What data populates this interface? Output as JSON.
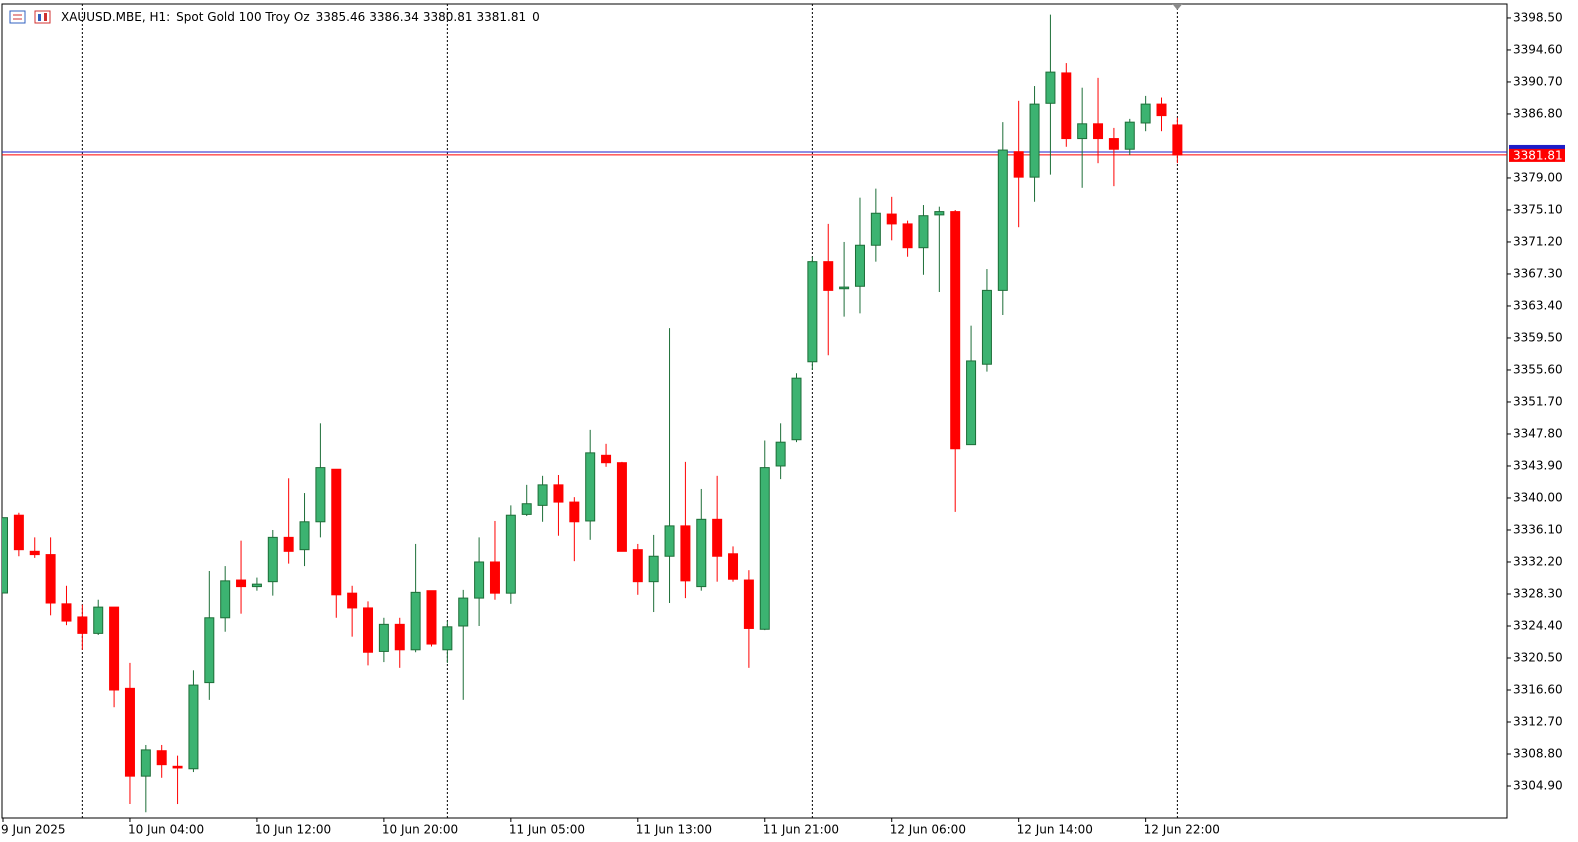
{
  "chart_data": {
    "type": "candlestick",
    "symbol": "XAUUSD.MBE, H1:",
    "description": "Spot Gold 100 Troy Oz",
    "spread": 0,
    "categories": [
      "9 Jun 2025",
      null,
      null,
      null,
      null,
      null,
      null,
      null,
      "10 Jun 04:00",
      null,
      null,
      null,
      null,
      null,
      null,
      null,
      "10 Jun 12:00",
      null,
      null,
      null,
      null,
      null,
      null,
      null,
      "10 Jun 20:00",
      null,
      null,
      null,
      null,
      null,
      null,
      null,
      "11 Jun 05:00",
      null,
      null,
      null,
      null,
      null,
      null,
      null,
      "11 Jun 13:00",
      null,
      null,
      null,
      null,
      null,
      null,
      null,
      "11 Jun 21:00",
      null,
      null,
      null,
      null,
      null,
      null,
      null,
      "12 Jun 06:00",
      null,
      null,
      null,
      null,
      null,
      null,
      null,
      "12 Jun 14:00",
      null,
      null,
      null,
      null,
      null,
      null,
      null,
      "12 Jun 22:00",
      null,
      null
    ],
    "open": [
      3328.42,
      3337.9,
      3333.5,
      3333.1,
      3327.1,
      3325.5,
      3323.5,
      3326.7,
      3316.8,
      3306.1,
      3309.2,
      3307.3,
      3307.0,
      3317.5,
      3325.4,
      3330.0,
      3329.2,
      3329.8,
      3335.2,
      3333.7,
      3337.1,
      3343.5,
      3328.4,
      3326.6,
      3321.3,
      3324.6,
      3321.5,
      3328.7,
      3321.5,
      3324.4,
      3327.8,
      3332.2,
      3328.4,
      3338.0,
      3339.1,
      3341.6,
      3339.5,
      3337.2,
      3345.2,
      3344.3,
      3333.7,
      3329.8,
      3332.9,
      3336.6,
      3329.2,
      3337.4,
      3333.2,
      3330.0,
      3324.0,
      3343.9,
      3347.1,
      3356.6,
      3368.8,
      3365.5,
      3365.8,
      3370.8,
      3374.6,
      3373.4,
      3370.5,
      3374.5,
      3374.9,
      3346.5,
      3356.3,
      3365.3,
      3382.2,
      3379.1,
      3388.1,
      3391.8,
      3383.8,
      3385.6,
      3383.8,
      3382.5,
      3385.7,
      3388.0,
      3385.46
    ],
    "high": [
      3337.6,
      3338.2,
      3335.2,
      3335.2,
      3329.3,
      3327.0,
      3327.6,
      3326.7,
      3319.9,
      3309.9,
      3309.9,
      3308.6,
      3319.0,
      3331.1,
      3331.7,
      3334.8,
      3330.3,
      3336.1,
      3342.4,
      3340.6,
      3349.1,
      3343.5,
      3329.3,
      3327.4,
      3325.4,
      3325.4,
      3334.4,
      3328.7,
      3325.0,
      3328.8,
      3335.2,
      3337.2,
      3339.1,
      3341.6,
      3342.7,
      3342.8,
      3340.1,
      3348.3,
      3346.6,
      3344.4,
      3334.4,
      3335.5,
      3360.7,
      3344.4,
      3341.1,
      3342.7,
      3334.1,
      3331.2,
      3347.0,
      3349.1,
      3355.2,
      3369.4,
      3373.4,
      3371.2,
      3376.6,
      3377.7,
      3376.7,
      3373.8,
      3375.7,
      3375.5,
      3375.1,
      3361.0,
      3367.9,
      3385.8,
      3388.4,
      3390.2,
      3398.9,
      3393.0,
      3390.0,
      3391.2,
      3385.1,
      3386.2,
      3389.0,
      3388.8,
      3386.34
    ],
    "low": [
      3328.4,
      3332.9,
      3332.7,
      3325.7,
      3324.5,
      3321.5,
      3323.3,
      3314.5,
      3302.7,
      3301.7,
      3305.9,
      3302.7,
      3306.6,
      3315.4,
      3323.7,
      3325.9,
      3328.7,
      3328.1,
      3332.0,
      3331.7,
      3335.2,
      3325.4,
      3323.1,
      3319.6,
      3320.0,
      3319.3,
      3321.2,
      3321.9,
      3319.9,
      3315.4,
      3324.4,
      3327.6,
      3327.1,
      3337.8,
      3337.1,
      3335.4,
      3332.3,
      3334.9,
      3343.8,
      3333.5,
      3328.2,
      3326.1,
      3327.2,
      3327.8,
      3328.7,
      3329.8,
      3329.8,
      3319.3,
      3323.9,
      3342.3,
      3346.8,
      3355.6,
      3357.4,
      3362.1,
      3362.5,
      3368.8,
      3371.4,
      3369.4,
      3367.2,
      3365.1,
      3338.3,
      3346.5,
      3355.4,
      3362.3,
      3373.0,
      3376.1,
      3379.4,
      3382.8,
      3377.8,
      3380.8,
      3378.0,
      3381.8,
      3384.7,
      3384.7,
      3380.81
    ],
    "close": [
      3337.6,
      3333.7,
      3333.1,
      3327.2,
      3325.0,
      3323.5,
      3326.7,
      3316.6,
      3306.1,
      3309.3,
      3307.5,
      3307.1,
      3317.2,
      3325.4,
      3329.9,
      3329.2,
      3329.5,
      3335.2,
      3333.5,
      3337.1,
      3343.7,
      3328.2,
      3326.6,
      3321.2,
      3324.6,
      3321.5,
      3328.5,
      3322.2,
      3324.3,
      3327.8,
      3332.2,
      3328.4,
      3337.9,
      3339.3,
      3341.6,
      3339.5,
      3337.1,
      3345.5,
      3344.3,
      3333.5,
      3329.8,
      3332.9,
      3336.6,
      3329.9,
      3337.4,
      3332.9,
      3330.1,
      3324.1,
      3343.7,
      3346.8,
      3354.6,
      3368.8,
      3365.3,
      3365.7,
      3370.8,
      3374.7,
      3373.4,
      3370.5,
      3374.4,
      3374.9,
      3346.0,
      3356.7,
      3365.3,
      3382.4,
      3379.1,
      3388.0,
      3391.9,
      3383.8,
      3385.6,
      3383.8,
      3382.5,
      3385.8,
      3388.0,
      3386.6,
      3381.81
    ],
    "up_color": "#3cb371",
    "up_edge": "#1d6e38",
    "down_color": "#ff0000",
    "ask_line": 3382.17,
    "ask_color": "#1e1ec8",
    "bid_color": "#ff0000",
    "ylim": [
      3301.0,
      3400.2
    ],
    "yticks": [
      {
        "value": 3398.5,
        "label": "3398.50"
      },
      {
        "value": 3394.6,
        "label": "3394.60"
      },
      {
        "value": 3390.7,
        "label": "3390.70"
      },
      {
        "value": 3386.8,
        "label": "3386.80"
      },
      {
        "value": 3379.0,
        "label": "3379.00"
      },
      {
        "value": 3375.1,
        "label": "3375.10"
      },
      {
        "value": 3371.2,
        "label": "3371.20"
      },
      {
        "value": 3367.3,
        "label": "3367.30"
      },
      {
        "value": 3363.4,
        "label": "3363.40"
      },
      {
        "value": 3359.5,
        "label": "3359.50"
      },
      {
        "value": 3355.6,
        "label": "3355.60"
      },
      {
        "value": 3351.7,
        "label": "3351.70"
      },
      {
        "value": 3347.8,
        "label": "3347.80"
      },
      {
        "value": 3343.9,
        "label": "3343.90"
      },
      {
        "value": 3340.0,
        "label": "3340.00"
      },
      {
        "value": 3336.1,
        "label": "3336.10"
      },
      {
        "value": 3332.2,
        "label": "3332.20"
      },
      {
        "value": 3328.3,
        "label": "3328.30"
      },
      {
        "value": 3324.4,
        "label": "3324.40"
      },
      {
        "value": 3320.5,
        "label": "3320.50"
      },
      {
        "value": 3316.6,
        "label": "3316.60"
      },
      {
        "value": 3312.7,
        "label": "3312.70"
      },
      {
        "value": 3308.8,
        "label": "3308.80"
      },
      {
        "value": 3304.9,
        "label": "3304.90"
      }
    ],
    "grid": false
  }
}
